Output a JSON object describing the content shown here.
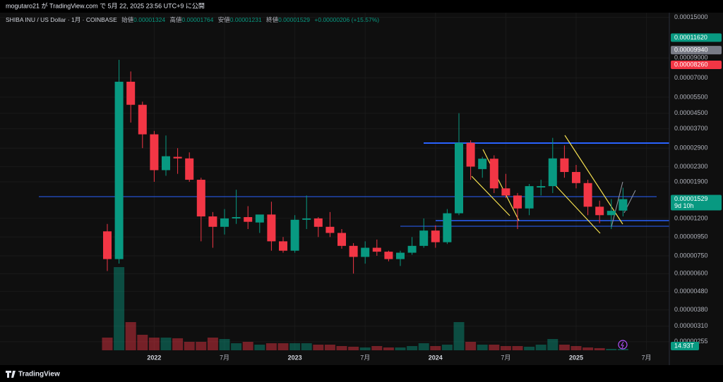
{
  "header": {
    "publisher": "mogutaro21 が TradingView.com で 5月 22, 2025 23:56 UTC+9 に公開"
  },
  "chart_data": {
    "type": "candlestick",
    "title": "SHIBA INU / US Dollar · 1月 · COINBASE",
    "legend": [
      {
        "label": "始値",
        "value": "0.00001324"
      },
      {
        "label": "高値",
        "value": "0.00001764"
      },
      {
        "label": "安値",
        "value": "0.00001231"
      },
      {
        "label": "終値",
        "value": "0.00001529"
      }
    ],
    "change": "+0.00000206 (+15.57%)",
    "categories": [
      null,
      null,
      null,
      null,
      "2022",
      null,
      null,
      null,
      null,
      null,
      "7月",
      null,
      null,
      null,
      null,
      null,
      "2023",
      null,
      null,
      null,
      null,
      null,
      "7月",
      null,
      null,
      null,
      null,
      null,
      "2024",
      null,
      null,
      null,
      null,
      null,
      "7月",
      null,
      null,
      null,
      null,
      null,
      "2025",
      null,
      null,
      null,
      null,
      null,
      "7月"
    ],
    "open": [
      1.02e-05,
      7.2e-06,
      6.68e-05,
      5e-05,
      3.45e-05,
      2.2e-05,
      2.6e-05,
      2.55e-05,
      1.95e-05,
      1.23e-05,
      1.08e-05,
      1.2e-05,
      1.22e-05,
      1.14e-05,
      1.26e-05,
      9e-06,
      8e-06,
      1.18e-05,
      1.2e-05,
      1.08e-05,
      1e-05,
      8.5e-06,
      7.4e-06,
      8.3e-06,
      7.9e-06,
      7.2e-06,
      7.8e-06,
      8.5e-06,
      1.03e-05,
      8.9e-06,
      1.28e-05,
      3.1e-05,
      2.23e-05,
      2.54e-05,
      1.75e-05,
      1.6e-05,
      1.36e-05,
      1.77e-05,
      1.8e-05,
      2.55e-05,
      2.15e-05,
      1.87e-05,
      1.39e-05,
      1.25e-05,
      1.324e-05,
      null,
      null
    ],
    "high": [
      1.12e-05,
      8.8e-05,
      7.6e-05,
      5.2e-05,
      3.6e-05,
      3.4e-05,
      2.9e-05,
      2.75e-05,
      2e-05,
      1.3e-05,
      1.35e-05,
      1.72e-05,
      1.4e-05,
      1.25e-05,
      1.48e-05,
      9.5e-06,
      1.25e-05,
      1.6e-05,
      1.22e-05,
      1.3e-05,
      1.05e-05,
      8.8e-06,
      9e-06,
      9.2e-06,
      8e-06,
      8e-06,
      9.5e-06,
      1.2e-05,
      1.1e-05,
      1.35e-05,
      4.5e-05,
      3.2e-05,
      2.6e-05,
      2.65e-05,
      2.1e-05,
      1.65e-05,
      1.85e-05,
      1.95e-05,
      3.3e-05,
      3e-05,
      2.35e-05,
      1.95e-05,
      1.5e-05,
      1.53e-05,
      1.764e-05,
      null,
      null
    ],
    "low": [
      6.2e-06,
      6.8e-06,
      4e-05,
      2.9e-05,
      1.9e-05,
      2.05e-05,
      2.1e-05,
      1.9e-05,
      9e-06,
      8.3e-06,
      9.8e-06,
      1.12e-05,
      1.05e-05,
      1e-05,
      8e-06,
      7.8e-06,
      7.8e-06,
      1.05e-05,
      9.5e-06,
      9.5e-06,
      8.2e-06,
      6e-06,
      6.8e-06,
      7.5e-06,
      7e-06,
      6.6e-06,
      7.6e-06,
      8.3e-06,
      8.3e-06,
      8.7e-06,
      1.25e-05,
      1.95e-05,
      2e-05,
      1.65e-05,
      1.55e-05,
      1.05e-05,
      1.25e-05,
      1.6e-05,
      1.65e-05,
      2e-05,
      1.75e-05,
      1.25e-05,
      1.13e-05,
      1.05e-05,
      1.231e-05,
      null,
      null
    ],
    "close": [
      7.2e-06,
      6.68e-05,
      5e-05,
      3.45e-05,
      2.2e-05,
      2.62e-05,
      2.55e-05,
      1.95e-05,
      1.23e-05,
      1.08e-05,
      1.2e-05,
      1.22e-05,
      1.15e-05,
      1.26e-05,
      9e-06,
      8e-06,
      1.18e-05,
      1.2e-05,
      1.08e-05,
      1e-05,
      8.5e-06,
      7.4e-06,
      8.3e-06,
      7.9e-06,
      7.2e-06,
      7.8e-06,
      8.5e-06,
      1.03e-05,
      8.9e-06,
      1.28e-05,
      3.1e-05,
      2.3e-05,
      2.54e-05,
      1.75e-05,
      1.6e-05,
      1.36e-05,
      1.8e-05,
      1.8e-05,
      2.55e-05,
      2.15e-05,
      1.87e-05,
      1.39e-05,
      1.25e-05,
      1.32e-05,
      1.529e-05,
      null,
      null
    ],
    "volume": [
      135,
      885,
      300,
      165,
      135,
      135,
      128,
      90,
      90,
      135,
      120,
      75,
      90,
      60,
      75,
      75,
      75,
      75,
      60,
      60,
      45,
      38,
      30,
      45,
      30,
      30,
      45,
      75,
      45,
      60,
      300,
      90,
      60,
      60,
      45,
      45,
      38,
      60,
      120,
      60,
      45,
      30,
      23,
      15,
      14.93,
      null,
      null
    ],
    "volume_label": "14.93T",
    "up_color": "#089981",
    "down_color": "#f23645",
    "log_scale": true,
    "grid": true,
    "ylim": [
      2.29e-06,
      0.000159
    ],
    "yticks": [
      {
        "value": 0.00015,
        "label": "0.00015000"
      },
      {
        "value": 9e-05,
        "label": "0.00009000"
      },
      {
        "value": 7e-05,
        "label": "0.00007000"
      },
      {
        "value": 5.5e-05,
        "label": "0.00005500"
      },
      {
        "value": 4.5e-05,
        "label": "0.00004500"
      },
      {
        "value": 3.7e-05,
        "label": "0.00003700"
      },
      {
        "value": 2.9e-05,
        "label": "0.00002900"
      },
      {
        "value": 2.3e-05,
        "label": "0.00002300"
      },
      {
        "value": 1.9e-05,
        "label": "0.00001900"
      },
      {
        "value": 1.2e-05,
        "label": "0.00001200"
      },
      {
        "value": 9.5e-06,
        "label": "0.00000950"
      },
      {
        "value": 7.5e-06,
        "label": "0.00000750"
      },
      {
        "value": 6e-06,
        "label": "0.00000600"
      },
      {
        "value": 4.8e-06,
        "label": "0.00000480"
      },
      {
        "value": 3.8e-06,
        "label": "0.00000380"
      },
      {
        "value": 3.1e-06,
        "label": "0.00000310"
      },
      {
        "value": 2.55e-06,
        "label": "0.00000255"
      }
    ],
    "price_badges": [
      {
        "value": 0.0001162,
        "label": "0.00011620",
        "color": "#089981"
      },
      {
        "value": 9.94e-05,
        "label": "0.00009940",
        "color": "#787b86"
      },
      {
        "value": 8.26e-05,
        "label": "0.00008260",
        "color": "#f23645"
      }
    ],
    "last_price": {
      "value": 1.529e-05,
      "label": "0.00001529",
      "countdown": "9d 10h",
      "color": "#089981"
    }
  },
  "footer": {
    "brand": "TradingView"
  }
}
